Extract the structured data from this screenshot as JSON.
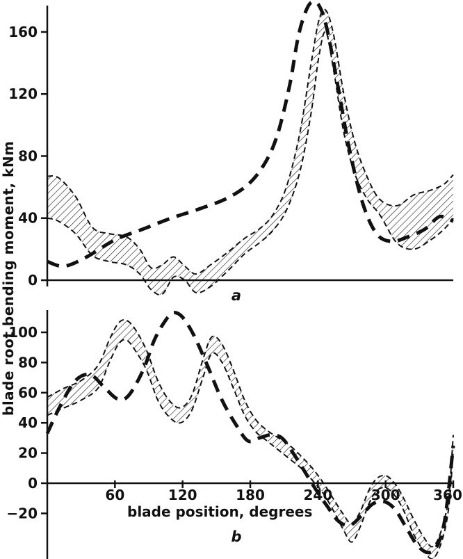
{
  "figure": {
    "background": "#ffffff",
    "ink": "#111111",
    "y_axis_label": "blade root bending moment, kNm",
    "x_axis_label": "blade position, degrees"
  },
  "chart_data": [
    {
      "type": "line",
      "panel": "a",
      "title": "",
      "xlabel": "",
      "ylabel": "blade root bending moment, kNm",
      "xlim": [
        0,
        360
      ],
      "ylim": [
        -15,
        185
      ],
      "yticks": [
        0,
        40,
        80,
        120,
        160
      ],
      "xticks": [],
      "grid": false,
      "legend": "none",
      "series": [
        {
          "name": "bold-dashed-curve",
          "style": "bold-dashed",
          "x": [
            0,
            15,
            35,
            60,
            85,
            110,
            135,
            160,
            180,
            195,
            205,
            215,
            222,
            228,
            234,
            241,
            248,
            258,
            268,
            280,
            292,
            305,
            320,
            335,
            348,
            360
          ],
          "y": [
            12,
            9,
            15,
            26,
            33,
            40,
            46,
            53,
            63,
            78,
            96,
            126,
            155,
            171,
            179,
            177,
            162,
            124,
            84,
            49,
            30,
            25,
            28,
            33,
            41,
            38
          ]
        },
        {
          "name": "band-upper",
          "style": "thin-dashed",
          "x": [
            0,
            10,
            25,
            40,
            55,
            70,
            82,
            92,
            102,
            112,
            122,
            132,
            145,
            160,
            175,
            188,
            200,
            212,
            224,
            234,
            241,
            247,
            254,
            263,
            273,
            284,
            295,
            310,
            325,
            340,
            352,
            360
          ],
          "y": [
            67,
            66,
            54,
            34,
            30,
            28,
            20,
            8,
            10,
            15,
            9,
            4,
            10,
            18,
            27,
            33,
            42,
            60,
            95,
            140,
            168,
            174,
            158,
            120,
            88,
            66,
            52,
            48,
            55,
            58,
            62,
            68
          ]
        },
        {
          "name": "band-lower",
          "style": "thin-dashed",
          "x": [
            0,
            10,
            25,
            40,
            55,
            70,
            82,
            92,
            102,
            112,
            122,
            132,
            145,
            160,
            175,
            188,
            200,
            212,
            224,
            234,
            241,
            247,
            254,
            263,
            273,
            284,
            295,
            310,
            325,
            340,
            352,
            360
          ],
          "y": [
            40,
            38,
            30,
            16,
            12,
            10,
            4,
            -6,
            -9,
            2,
            0,
            -8,
            -4,
            6,
            17,
            24,
            32,
            45,
            70,
            108,
            145,
            160,
            135,
            95,
            68,
            52,
            42,
            24,
            20,
            26,
            33,
            40
          ]
        }
      ],
      "band": {
        "upper": "band-upper",
        "lower": "band-lower",
        "fill": "diagonal-hatch"
      }
    },
    {
      "type": "line",
      "panel": "b",
      "title": "",
      "xlabel": "blade position, degrees",
      "ylabel": "blade root bending moment, kNm",
      "xlim": [
        0,
        360
      ],
      "ylim": [
        -52,
        118
      ],
      "yticks": [
        -20,
        0,
        20,
        40,
        60,
        80,
        100
      ],
      "xticks": [
        60,
        120,
        180,
        240,
        300,
        360
      ],
      "grid": false,
      "legend": "none",
      "series": [
        {
          "name": "bold-dashed-curve",
          "style": "bold-dashed",
          "x": [
            0,
            12,
            25,
            38,
            50,
            62,
            72,
            85,
            95,
            105,
            112,
            120,
            130,
            142,
            155,
            168,
            178,
            188,
            198,
            208,
            218,
            228,
            238,
            248,
            258,
            268,
            278,
            288,
            298,
            308,
            318,
            328,
            338,
            346,
            353,
            360
          ],
          "y": [
            33,
            52,
            68,
            72,
            64,
            56,
            58,
            75,
            95,
            108,
            113,
            110,
            98,
            78,
            55,
            38,
            28,
            30,
            32,
            30,
            20,
            8,
            -4,
            -15,
            -25,
            -28,
            -22,
            -14,
            -12,
            -17,
            -29,
            -41,
            -46,
            -41,
            -22,
            25
          ]
        },
        {
          "name": "band-upper",
          "style": "thin-dashed",
          "x": [
            0,
            15,
            30,
            45,
            55,
            63,
            70,
            78,
            88,
            98,
            108,
            118,
            128,
            138,
            146,
            155,
            165,
            175,
            185,
            195,
            205,
            215,
            225,
            235,
            245,
            255,
            262,
            270,
            278,
            285,
            292,
            300,
            308,
            316,
            325,
            334,
            342,
            350,
            356,
            360
          ],
          "y": [
            57,
            63,
            68,
            78,
            95,
            106,
            108,
            102,
            88,
            68,
            55,
            50,
            58,
            82,
            97,
            92,
            75,
            55,
            42,
            35,
            30,
            25,
            18,
            10,
            0,
            -12,
            -20,
            -27,
            -18,
            -5,
            3,
            5,
            0,
            -10,
            -24,
            -36,
            -42,
            -30,
            -8,
            32
          ]
        },
        {
          "name": "band-lower",
          "style": "thin-dashed",
          "x": [
            0,
            15,
            30,
            45,
            55,
            63,
            70,
            78,
            88,
            98,
            108,
            118,
            128,
            138,
            146,
            155,
            165,
            175,
            185,
            195,
            205,
            215,
            225,
            235,
            245,
            255,
            262,
            270,
            278,
            285,
            292,
            300,
            308,
            316,
            325,
            334,
            342,
            350,
            356,
            360
          ],
          "y": [
            45,
            50,
            55,
            63,
            80,
            92,
            95,
            88,
            75,
            55,
            44,
            40,
            48,
            70,
            86,
            80,
            63,
            45,
            34,
            28,
            22,
            16,
            10,
            2,
            -7,
            -20,
            -30,
            -39,
            -28,
            -14,
            -5,
            -3,
            -8,
            -18,
            -34,
            -45,
            -50,
            -38,
            -16,
            22
          ]
        }
      ],
      "band": {
        "upper": "band-upper",
        "lower": "band-lower",
        "fill": "diagonal-hatch"
      }
    }
  ]
}
